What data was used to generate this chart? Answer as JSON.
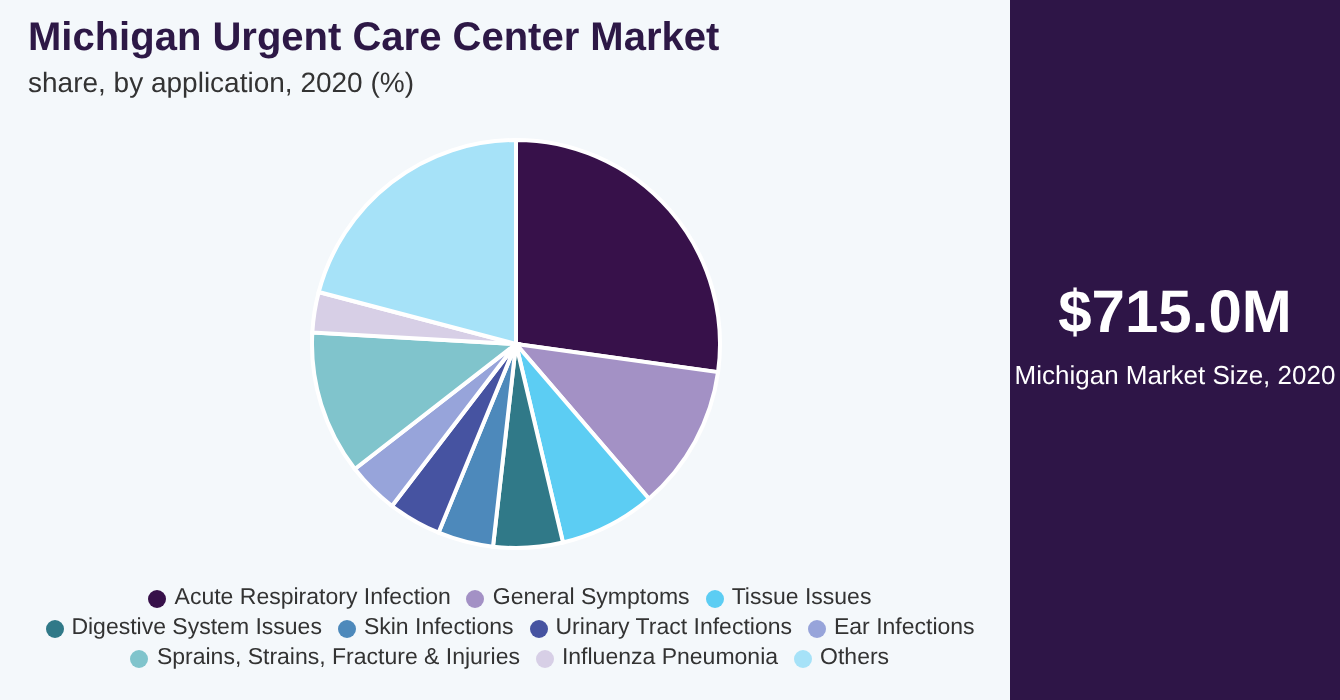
{
  "chart_data": {
    "type": "pie",
    "title": "Michigan Urgent Care Center Market",
    "subtitle": "share, by application, 2020 (%)",
    "categories": [
      "Acute Respiratory Infection",
      "General Symptoms",
      "Tissue Issues",
      "Digestive System Issues",
      "Skin Infections",
      "Urinary Tract Infections",
      "Ear Infections",
      "Sprains, Strains, Fracture & Injuries",
      "Influenza Pneumonia",
      "Others"
    ],
    "values": [
      27.2,
      11.5,
      7.6,
      5.5,
      4.4,
      4.2,
      4.1,
      11.4,
      3.2,
      20.9
    ],
    "colors": [
      "#37114a",
      "#a391c5",
      "#5ccdf3",
      "#307988",
      "#4d89bb",
      "#4653a1",
      "#97a4da",
      "#80c4cc",
      "#d7cfe6",
      "#a6e2f8"
    ],
    "legend": "bottom",
    "annotations": [
      "$715.0M",
      "Michigan Market Size, 2020"
    ]
  }
}
